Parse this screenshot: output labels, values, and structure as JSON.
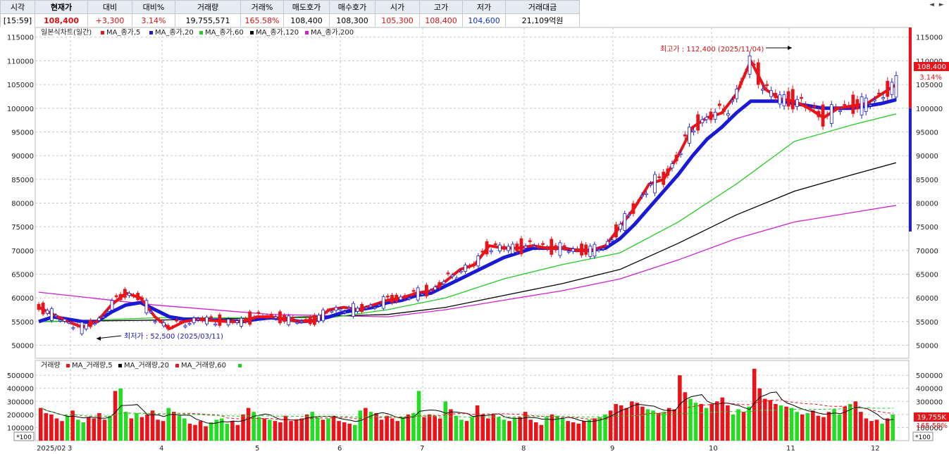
{
  "quote": {
    "headers": [
      "시각",
      "현재가",
      "대비",
      "대비%",
      "거래량",
      "거래%",
      "매도호가",
      "매수호가",
      "시가",
      "고가",
      "저가",
      "거래대금"
    ],
    "values": [
      "[15:59]",
      "108,400",
      "+3,300",
      "3.14%",
      "19,755,571",
      "165.58%",
      "108,400",
      "108,300",
      "105,300",
      "108,400",
      "104,600",
      "21,109억원"
    ]
  },
  "price_legend": [
    "일본식차트(일간)",
    "MA_종가,5",
    "MA_종가,20",
    "MA_종가,60",
    "MA_종가,120",
    "MA_종가,200"
  ],
  "volume_legend": [
    "거래량",
    "MA_거래량,5",
    "MA_거래량,20",
    "MA_거래량,60"
  ],
  "annotations": {
    "high": "최고가 : 112,400 (2025/11/04)",
    "low": "최저가 : 52,500 (2025/03/11)",
    "last_price": "108,400",
    "last_pct": "3.14%",
    "last_volume": "19,755K",
    "last_volume_pct": "165.58%",
    "x100_left": "*100",
    "x100_right": "*100"
  },
  "colors": {
    "up": "#e8141a",
    "down": "#2020c8",
    "ma5": "#e8141a",
    "ma20": "#1a1ad6",
    "ma60": "#22cc22",
    "ma120": "#000000",
    "ma200": "#d020d0",
    "vol_up": "#e8141a",
    "vol_down": "#22dd22"
  },
  "chart_data": [
    {
      "type": "candlestick",
      "title": "일본식차트(일간)",
      "x_labels": [
        "2025/02",
        "3",
        "4",
        "5",
        "6",
        "7",
        "8",
        "9",
        "10",
        "11",
        "12"
      ],
      "ylim": [
        48000,
        116000
      ],
      "y_ticks": [
        50000,
        55000,
        60000,
        65000,
        70000,
        75000,
        80000,
        85000,
        90000,
        95000,
        100000,
        105000,
        110000,
        115000
      ],
      "series": [
        {
          "name": "MA_종가,5",
          "points": [
            [
              0,
              58000
            ],
            [
              1,
              56500
            ],
            [
              2,
              55000
            ],
            [
              3,
              53800
            ],
            [
              4,
              55000
            ],
            [
              5,
              58500
            ],
            [
              6,
              61000
            ],
            [
              7,
              60000
            ],
            [
              8,
              56000
            ],
            [
              9,
              53500
            ],
            [
              10,
              55000
            ],
            [
              11,
              55500
            ],
            [
              12,
              55200
            ],
            [
              13,
              55000
            ],
            [
              14,
              55000
            ],
            [
              15,
              56000
            ],
            [
              16,
              56000
            ],
            [
              17,
              55500
            ],
            [
              18,
              55000
            ],
            [
              19,
              55200
            ],
            [
              20,
              57500
            ],
            [
              21,
              58000
            ],
            [
              22,
              57500
            ],
            [
              23,
              58500
            ],
            [
              24,
              59500
            ],
            [
              25,
              60000
            ],
            [
              26,
              61000
            ],
            [
              27,
              61500
            ],
            [
              28,
              63500
            ],
            [
              29,
              66000
            ],
            [
              30,
              67000
            ],
            [
              31,
              71000
            ],
            [
              32,
              70500
            ],
            [
              33,
              70500
            ],
            [
              34,
              71000
            ],
            [
              35,
              70500
            ],
            [
              36,
              70500
            ],
            [
              37,
              70000
            ],
            [
              38,
              70000
            ],
            [
              39,
              71000
            ],
            [
              40,
              75000
            ],
            [
              41,
              79000
            ],
            [
              42,
              84000
            ],
            [
              43,
              85000
            ],
            [
              44,
              90000
            ],
            [
              45,
              96000
            ],
            [
              46,
              98000
            ],
            [
              47,
              99000
            ],
            [
              48,
              103000
            ],
            [
              49,
              110000
            ],
            [
              50,
              104000
            ],
            [
              51,
              102000
            ],
            [
              52,
              101500
            ],
            [
              53,
              100000
            ],
            [
              54,
              98000
            ],
            [
              55,
              100000
            ],
            [
              56,
              100500
            ],
            [
              57,
              101000
            ],
            [
              58,
              103000
            ],
            [
              59,
              105000
            ]
          ]
        },
        {
          "name": "MA_종가,20",
          "points": [
            [
              0,
              55000
            ],
            [
              1,
              56000
            ],
            [
              2,
              55500
            ],
            [
              3,
              55000
            ],
            [
              4,
              55000
            ],
            [
              5,
              57000
            ],
            [
              6,
              58500
            ],
            [
              7,
              59000
            ],
            [
              8,
              57500
            ],
            [
              9,
              56000
            ],
            [
              10,
              55500
            ],
            [
              11,
              55500
            ],
            [
              12,
              55300
            ],
            [
              13,
              55200
            ],
            [
              14,
              55000
            ],
            [
              15,
              55500
            ],
            [
              16,
              55800
            ],
            [
              17,
              55500
            ],
            [
              18,
              55000
            ],
            [
              19,
              55200
            ],
            [
              20,
              56000
            ],
            [
              21,
              57000
            ],
            [
              22,
              57500
            ],
            [
              23,
              58000
            ],
            [
              24,
              59000
            ],
            [
              25,
              59500
            ],
            [
              26,
              60500
            ],
            [
              27,
              61000
            ],
            [
              28,
              62500
            ],
            [
              29,
              64000
            ],
            [
              30,
              65500
            ],
            [
              31,
              67000
            ],
            [
              32,
              68500
            ],
            [
              33,
              69500
            ],
            [
              34,
              70500
            ],
            [
              35,
              70500
            ],
            [
              36,
              70500
            ],
            [
              37,
              70000
            ],
            [
              38,
              70000
            ],
            [
              39,
              70500
            ],
            [
              40,
              72500
            ],
            [
              41,
              75500
            ],
            [
              42,
              79000
            ],
            [
              43,
              82500
            ],
            [
              44,
              86000
            ],
            [
              45,
              90000
            ],
            [
              46,
              93500
            ],
            [
              47,
              96000
            ],
            [
              48,
              99000
            ],
            [
              49,
              101500
            ],
            [
              50,
              101500
            ],
            [
              51,
              101500
            ],
            [
              52,
              101000
            ],
            [
              53,
              100500
            ],
            [
              54,
              100000
            ],
            [
              55,
              100000
            ],
            [
              56,
              100000
            ],
            [
              57,
              100500
            ],
            [
              58,
              101000
            ],
            [
              59,
              101800
            ]
          ]
        },
        {
          "name": "MA_종가,60",
          "points": [
            [
              0,
              55000
            ],
            [
              4,
              55300
            ],
            [
              8,
              55800
            ],
            [
              12,
              55800
            ],
            [
              16,
              55800
            ],
            [
              20,
              55800
            ],
            [
              24,
              57500
            ],
            [
              28,
              60000
            ],
            [
              32,
              64000
            ],
            [
              36,
              67000
            ],
            [
              40,
              69500
            ],
            [
              44,
              76000
            ],
            [
              48,
              84000
            ],
            [
              52,
              93000
            ],
            [
              56,
              96500
            ],
            [
              59,
              98800
            ]
          ]
        },
        {
          "name": "MA_종가,120",
          "points": [
            [
              0,
              55000
            ],
            [
              8,
              55300
            ],
            [
              16,
              55800
            ],
            [
              24,
              56500
            ],
            [
              28,
              58000
            ],
            [
              32,
              60500
            ],
            [
              36,
              63000
            ],
            [
              40,
              66000
            ],
            [
              44,
              71500
            ],
            [
              48,
              77500
            ],
            [
              52,
              82500
            ],
            [
              56,
              86000
            ],
            [
              59,
              88500
            ]
          ]
        },
        {
          "name": "MA_종가,200",
          "points": [
            [
              0,
              61200
            ],
            [
              8,
              58500
            ],
            [
              16,
              56500
            ],
            [
              24,
              56000
            ],
            [
              28,
              57500
            ],
            [
              32,
              59500
            ],
            [
              36,
              61500
            ],
            [
              40,
              64000
            ],
            [
              44,
              68000
            ],
            [
              48,
              72500
            ],
            [
              52,
              76000
            ],
            [
              56,
              78000
            ],
            [
              59,
              79500
            ]
          ]
        }
      ]
    },
    {
      "type": "bar",
      "title": "거래량",
      "unit": "*100",
      "ylim": [
        0,
        560000
      ],
      "y_ticks": [
        100000,
        200000,
        300000,
        400000,
        500000
      ],
      "values": [
        250000,
        210000,
        200000,
        170000,
        150000,
        190000,
        230000,
        160000,
        140000,
        180000,
        170000,
        210000,
        160000,
        190000,
        380000,
        400000,
        220000,
        170000,
        210000,
        180000,
        200000,
        230000,
        160000,
        150000,
        250000,
        220000,
        190000,
        170000,
        130000,
        120000,
        150000,
        110000,
        140000,
        160000,
        170000,
        130000,
        150000,
        120000,
        200000,
        250000,
        220000,
        180000,
        170000,
        160000,
        150000,
        140000,
        190000,
        150000,
        160000,
        170000,
        200000,
        220000,
        180000,
        160000,
        170000,
        190000,
        150000,
        140000,
        130000,
        120000,
        230000,
        250000,
        220000,
        210000,
        160000,
        190000,
        170000,
        150000,
        180000,
        200000,
        210000,
        380000,
        180000,
        200000,
        190000,
        170000,
        300000,
        240000,
        190000,
        160000,
        150000,
        180000,
        270000,
        200000,
        170000,
        200000,
        180000,
        160000,
        150000,
        170000,
        180000,
        220000,
        160000,
        140000,
        120000,
        180000,
        200000,
        190000,
        170000,
        150000,
        140000,
        130000,
        150000,
        160000,
        170000,
        180000,
        200000,
        230000,
        280000,
        270000,
        250000,
        300000,
        290000,
        260000,
        240000,
        230000,
        210000,
        220000,
        250000,
        240000,
        500000,
        370000,
        320000,
        290000,
        280000,
        250000,
        280000,
        300000,
        330000,
        270000,
        200000,
        240000,
        220000,
        260000,
        550000,
        400000,
        320000,
        310000,
        280000,
        270000,
        260000,
        250000,
        220000,
        200000,
        210000,
        230000,
        190000,
        180000,
        220000,
        240000,
        200000,
        260000,
        280000,
        300000,
        220000,
        170000,
        150000,
        160000,
        130000,
        170000,
        200000
      ]
    }
  ]
}
